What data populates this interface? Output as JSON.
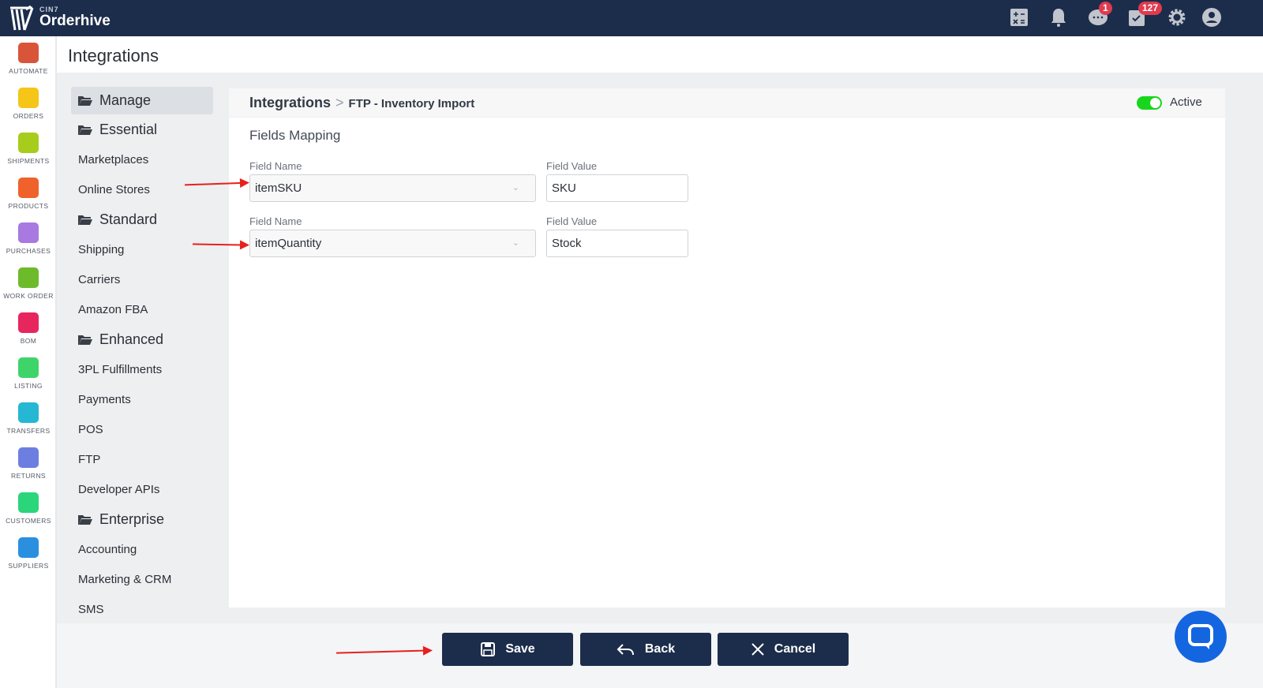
{
  "app": {
    "brand_small": "CIN7",
    "brand": "Orderhive"
  },
  "topbar": {
    "icons": [
      "calculator-icon",
      "bell-icon",
      "chat-icon",
      "tasks-icon",
      "gear-icon",
      "user-icon"
    ],
    "chat_badge": "1",
    "tasks_badge": "127"
  },
  "rail": {
    "items": [
      {
        "label": "AUTOMATE",
        "color": "#d9553a"
      },
      {
        "label": "ORDERS",
        "color": "#f5c518"
      },
      {
        "label": "SHIPMENTS",
        "color": "#a8cc1c"
      },
      {
        "label": "PRODUCTS",
        "color": "#f0622b"
      },
      {
        "label": "PURCHASES",
        "color": "#a879e0"
      },
      {
        "label": "WORK ORDER",
        "color": "#6dbb2a"
      },
      {
        "label": "BOM",
        "color": "#e8265e"
      },
      {
        "label": "LISTING",
        "color": "#3fd46a"
      },
      {
        "label": "TRANSFERS",
        "color": "#25b7d3"
      },
      {
        "label": "RETURNS",
        "color": "#6c7fe0"
      },
      {
        "label": "CUSTOMERS",
        "color": "#2bd67b"
      },
      {
        "label": "SUPPLIERS",
        "color": "#2b8fe0"
      }
    ]
  },
  "page": {
    "title": "Integrations"
  },
  "nav": {
    "items": [
      {
        "label": "Manage",
        "group": true,
        "selected": true
      },
      {
        "label": "Essential",
        "group": true
      },
      {
        "label": "Marketplaces"
      },
      {
        "label": "Online Stores"
      },
      {
        "label": "Standard",
        "group": true
      },
      {
        "label": "Shipping"
      },
      {
        "label": "Carriers"
      },
      {
        "label": "Amazon FBA"
      },
      {
        "label": "Enhanced",
        "group": true
      },
      {
        "label": "3PL Fulfillments"
      },
      {
        "label": "Payments"
      },
      {
        "label": "POS"
      },
      {
        "label": "FTP"
      },
      {
        "label": "Developer APIs"
      },
      {
        "label": "Enterprise",
        "group": true
      },
      {
        "label": "Accounting"
      },
      {
        "label": "Marketing & CRM"
      },
      {
        "label": "SMS"
      }
    ]
  },
  "card": {
    "breadcrumb_root": "Integrations",
    "breadcrumb_current": "FTP - Inventory Import",
    "active_label": "Active",
    "active": true,
    "section_title": "Fields Mapping",
    "rows": [
      {
        "name_label": "Field Name",
        "name_value": "itemSKU",
        "value_label": "Field Value",
        "value": "SKU"
      },
      {
        "name_label": "Field Name",
        "name_value": "itemQuantity",
        "value_label": "Field Value",
        "value": "Stock"
      }
    ]
  },
  "footer": {
    "save": "Save",
    "back": "Back",
    "cancel": "Cancel"
  },
  "colors": {
    "topbar": "#1c2d4b",
    "toggle": "#18d61c",
    "badge": "#e03a4e",
    "annotation_arrow": "#e8201c",
    "chat": "#1466e0"
  }
}
